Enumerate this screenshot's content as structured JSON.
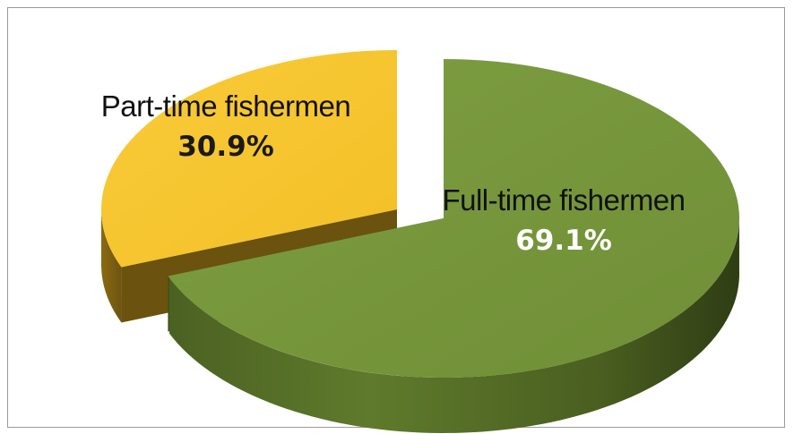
{
  "chart_data": {
    "type": "pie",
    "style": "3d-exploded",
    "slices": [
      {
        "label": "Full-time fishermen",
        "value": 69.1,
        "value_label": "69.1%",
        "color": "#7a9a3e"
      },
      {
        "label": "Part-time fishermen",
        "value": 30.9,
        "value_label": "30.9%",
        "color": "#f7c631"
      }
    ],
    "title": "",
    "legend": "none"
  }
}
